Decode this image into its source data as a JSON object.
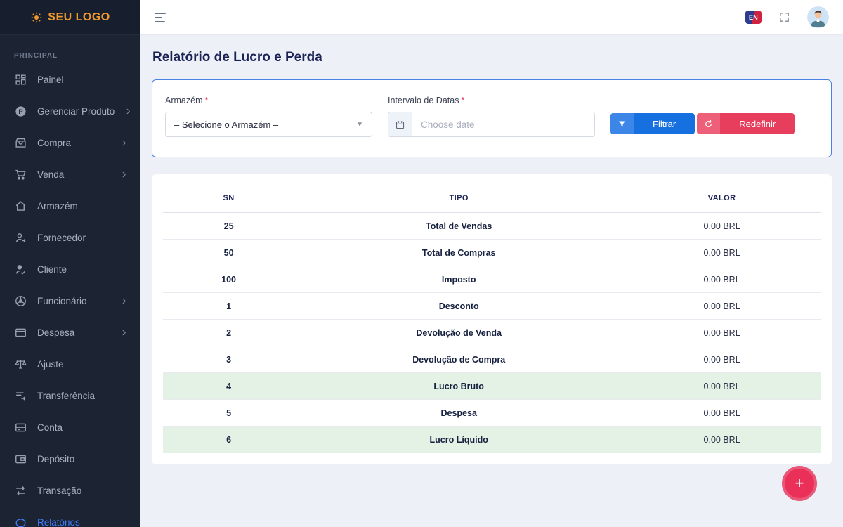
{
  "sidebar": {
    "logo_text": "SEU LOGO",
    "section_label": "PRINCIPAL",
    "items": [
      {
        "label": "Painel",
        "icon": "dashboard",
        "chevron": false,
        "active": false
      },
      {
        "label": "Gerenciar Produto",
        "icon": "product",
        "chevron": true,
        "active": false
      },
      {
        "label": "Compra",
        "icon": "purchase",
        "chevron": true,
        "active": false
      },
      {
        "label": "Venda",
        "icon": "cart",
        "chevron": true,
        "active": false
      },
      {
        "label": "Armazém",
        "icon": "warehouse",
        "chevron": false,
        "active": false
      },
      {
        "label": "Fornecedor",
        "icon": "supplier",
        "chevron": false,
        "active": false
      },
      {
        "label": "Cliente",
        "icon": "customer",
        "chevron": false,
        "active": false
      },
      {
        "label": "Funcionário",
        "icon": "employee",
        "chevron": true,
        "active": false
      },
      {
        "label": "Despesa",
        "icon": "expense",
        "chevron": true,
        "active": false
      },
      {
        "label": "Ajuste",
        "icon": "adjustment",
        "chevron": false,
        "active": false
      },
      {
        "label": "Transferência",
        "icon": "transfer",
        "chevron": false,
        "active": false
      },
      {
        "label": "Conta",
        "icon": "account",
        "chevron": false,
        "active": false
      },
      {
        "label": "Depósito",
        "icon": "deposit",
        "chevron": false,
        "active": false
      },
      {
        "label": "Transação",
        "icon": "transaction",
        "chevron": false,
        "active": false
      },
      {
        "label": "Relatórios",
        "icon": "report",
        "chevron": false,
        "active": true
      }
    ]
  },
  "topbar": {
    "language_badge": "EN"
  },
  "page": {
    "title": "Relatório de Lucro e Perda"
  },
  "filter": {
    "warehouse_label": "Armazém",
    "required_marker": "*",
    "warehouse_value": "– Selecione o Armazém –",
    "date_label": "Intervalo de Datas",
    "date_placeholder": "Choose date",
    "filter_button_label": "Filtrar",
    "reset_button_label": "Redefinir"
  },
  "table": {
    "columns": [
      "SN",
      "TIPO",
      "VALOR"
    ],
    "rows": [
      {
        "sn": "25",
        "tipo": "Total de Vendas",
        "valor": "0.00 BRL",
        "highlight": false
      },
      {
        "sn": "50",
        "tipo": "Total de Compras",
        "valor": "0.00 BRL",
        "highlight": false
      },
      {
        "sn": "100",
        "tipo": "Imposto",
        "valor": "0.00 BRL",
        "highlight": false
      },
      {
        "sn": "1",
        "tipo": "Desconto",
        "valor": "0.00 BRL",
        "highlight": false
      },
      {
        "sn": "2",
        "tipo": "Devolução de Venda",
        "valor": "0.00 BRL",
        "highlight": false
      },
      {
        "sn": "3",
        "tipo": "Devolução de Compra",
        "valor": "0.00 BRL",
        "highlight": false
      },
      {
        "sn": "4",
        "tipo": "Lucro Bruto",
        "valor": "0.00 BRL",
        "highlight": true
      },
      {
        "sn": "5",
        "tipo": "Despesa",
        "valor": "0.00 BRL",
        "highlight": false
      },
      {
        "sn": "6",
        "tipo": "Lucro Líquido",
        "valor": "0.00 BRL",
        "highlight": true
      }
    ]
  },
  "fab": {
    "plus": "+"
  },
  "colors": {
    "sidebar_bg": "#1c2434",
    "logo_orange": "#f0992e",
    "active_link_blue": "#3f7bf6",
    "filter_button_blue": "#1670e0",
    "reset_button_red": "#e73e5e",
    "card_border_blue": "#4a82e4",
    "highlight_green": "#e4f2e5",
    "fab_pink": "#ea3058",
    "content_bg": "#edf0f7"
  }
}
